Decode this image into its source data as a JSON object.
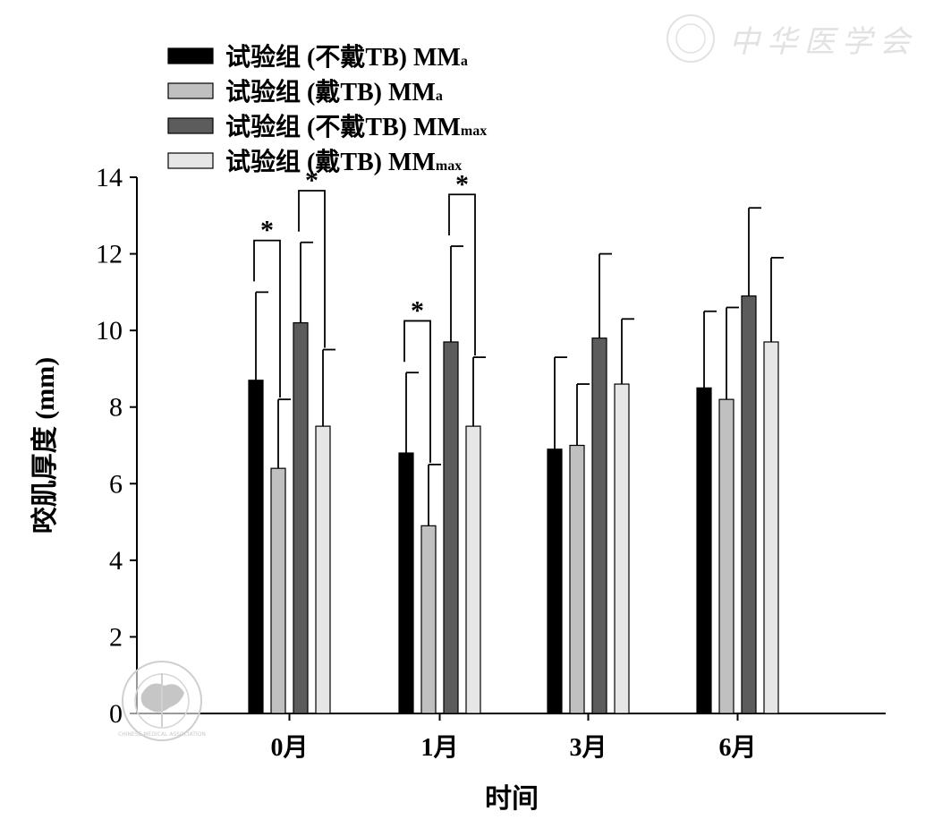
{
  "chart_data": {
    "type": "bar",
    "categories": [
      "0月",
      "1月",
      "3月",
      "6月"
    ],
    "series": [
      {
        "name": "试验组 (不戴TB) MM",
        "subscript": "a",
        "color": "#000000",
        "values": [
          8.7,
          6.8,
          6.9,
          8.5
        ],
        "errors": [
          2.3,
          2.1,
          2.4,
          2.0
        ]
      },
      {
        "name": "试验组 (戴TB) MM",
        "subscript": "a",
        "color": "#c0c0c0",
        "values": [
          6.4,
          4.9,
          7.0,
          8.2
        ],
        "errors": [
          1.8,
          1.6,
          1.6,
          2.4
        ]
      },
      {
        "name": "试验组 (不戴TB) MM",
        "subscript": "max",
        "color": "#5c5c5c",
        "values": [
          10.2,
          9.7,
          9.8,
          10.9
        ],
        "errors": [
          2.1,
          2.5,
          2.2,
          2.3
        ]
      },
      {
        "name": "试验组 (戴TB) MM",
        "subscript": "max",
        "color": "#e6e6e6",
        "values": [
          7.5,
          7.5,
          8.6,
          9.7
        ],
        "errors": [
          2.0,
          1.8,
          1.7,
          2.2
        ]
      }
    ],
    "xlabel": "时间",
    "ylabel": "咬肌厚度 (mm)",
    "ylim": [
      0,
      14
    ],
    "yticks": [
      0,
      2,
      4,
      6,
      8,
      10,
      12,
      14
    ],
    "grid": false,
    "legend_position": "top-left",
    "significance": [
      {
        "category": 0,
        "from_series": 0,
        "to_series": 1,
        "label": "*"
      },
      {
        "category": 0,
        "from_series": 2,
        "to_series": 3,
        "label": "*"
      },
      {
        "category": 1,
        "from_series": 0,
        "to_series": 1,
        "label": "*"
      },
      {
        "category": 1,
        "from_series": 2,
        "to_series": 3,
        "label": "*"
      }
    ]
  },
  "watermark": {
    "text": "中华医学会",
    "seal_text": "CHINESE MEDICAL ASSOCIATION"
  }
}
